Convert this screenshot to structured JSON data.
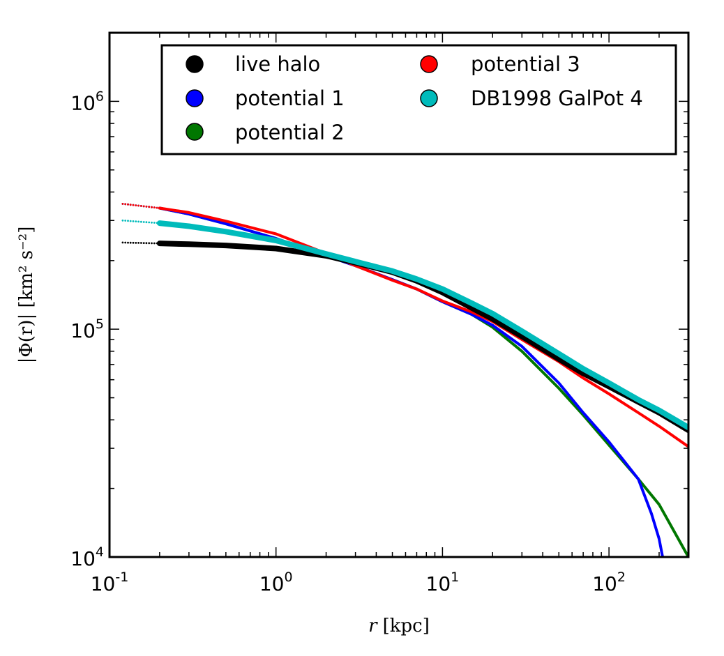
{
  "chart_data": {
    "type": "line",
    "xscale": "log",
    "yscale": "log",
    "xlim": [
      0.1,
      300
    ],
    "ylim": [
      10000,
      2000000
    ],
    "xlabel_var": "r",
    "xlabel_unit": "[kpc]",
    "ylabel": "|Φ(r)| [km² s⁻²]",
    "x_ticks": [
      {
        "value": 0.1,
        "base": "10",
        "exp": "-1"
      },
      {
        "value": 1,
        "base": "10",
        "exp": "0"
      },
      {
        "value": 10,
        "base": "10",
        "exp": "1"
      },
      {
        "value": 100,
        "base": "10",
        "exp": "2"
      }
    ],
    "y_ticks": [
      {
        "value": 10000,
        "base": "10",
        "exp": "4"
      },
      {
        "value": 100000,
        "base": "10",
        "exp": "5"
      },
      {
        "value": 1000000,
        "base": "10",
        "exp": "6"
      }
    ],
    "legend_position": "top",
    "series": [
      {
        "name": "live halo",
        "color": "#000000",
        "style": "thick",
        "x": [
          0.12,
          0.2,
          0.3,
          0.5,
          1,
          2,
          3,
          5,
          7,
          10,
          15,
          20,
          30,
          50,
          70,
          100,
          150,
          200,
          300
        ],
        "y": [
          240000,
          238000,
          236000,
          233000,
          226000,
          210000,
          196000,
          178000,
          163000,
          145000,
          124000,
          111000,
          93000,
          74000,
          64000,
          56000,
          48000,
          43000,
          36000
        ]
      },
      {
        "name": "potential 1",
        "color": "#0000ff",
        "style": "line",
        "x": [
          0.12,
          0.2,
          0.3,
          0.5,
          1,
          2,
          3,
          5,
          7,
          10,
          15,
          20,
          30,
          50,
          70,
          100,
          150,
          180,
          200,
          210
        ],
        "y": [
          355000,
          340000,
          320000,
          290000,
          250000,
          210000,
          190000,
          165000,
          150000,
          132000,
          116000,
          104000,
          84000,
          58000,
          43000,
          32000,
          22000,
          15500,
          12000,
          10000
        ]
      },
      {
        "name": "potential 2",
        "color": "#007700",
        "style": "line",
        "x": [
          0.12,
          0.2,
          0.3,
          0.5,
          1,
          2,
          3,
          5,
          7,
          10,
          15,
          20,
          30,
          50,
          70,
          100,
          150,
          200,
          300
        ],
        "y": [
          355000,
          340000,
          320000,
          290000,
          250000,
          210000,
          190000,
          165000,
          150000,
          132000,
          116000,
          102000,
          80000,
          55000,
          42000,
          31000,
          22000,
          17000,
          10000
        ]
      },
      {
        "name": "potential 3",
        "color": "#ff0000",
        "style": "line",
        "x": [
          0.12,
          0.2,
          0.3,
          0.5,
          1,
          2,
          3,
          5,
          7,
          10,
          15,
          20,
          30,
          50,
          70,
          100,
          150,
          200,
          300
        ],
        "y": [
          355000,
          340000,
          325000,
          298000,
          262000,
          215000,
          190000,
          164000,
          150000,
          133000,
          119000,
          108000,
          90000,
          72000,
          61000,
          52000,
          43000,
          37500,
          30500
        ]
      },
      {
        "name": "DB1998 GalPot 4",
        "color": "#00bbbb",
        "style": "thick",
        "x": [
          0.12,
          0.2,
          0.3,
          0.5,
          1,
          2,
          3,
          5,
          7,
          10,
          15,
          20,
          30,
          50,
          70,
          100,
          150,
          200,
          300
        ],
        "y": [
          300000,
          292000,
          283000,
          268000,
          245000,
          214000,
          198000,
          180000,
          166000,
          150000,
          130000,
          117000,
          98000,
          78000,
          67000,
          58000,
          49000,
          44000,
          37000
        ]
      }
    ]
  }
}
